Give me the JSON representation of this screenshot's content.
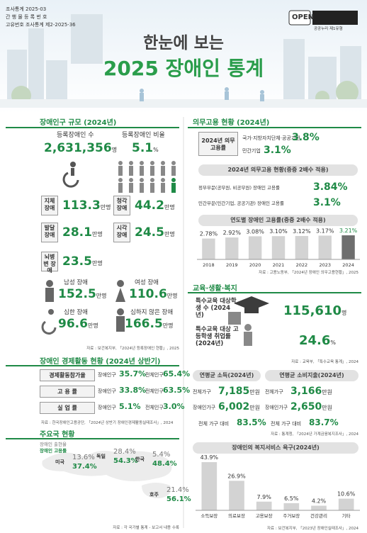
{
  "header": {
    "meta": [
      "조사통계 2025-03",
      "간 행 물 등 록 번 호",
      "고유번호 조사통계 제2-2025-36"
    ],
    "title": "한눈에 보는",
    "subtitle": "2025 장애인 통계",
    "license": "OPEN",
    "license_note": "공공누리 제1유형"
  },
  "population": {
    "heading": "장애인구 규모 (2024년)",
    "registered": {
      "label": "등록장애인 수",
      "value": "2,631,356",
      "unit": "명"
    },
    "ratio": {
      "label": "등록장애인 비율",
      "value": "5.1",
      "unit": "%"
    },
    "types": [
      {
        "label": "지체 장애",
        "value": "113.3",
        "unit": "만명"
      },
      {
        "label": "청각 장애",
        "value": "44.2",
        "unit": "만명"
      },
      {
        "label": "발달 장애",
        "value": "28.1",
        "unit": "만명"
      },
      {
        "label": "시각 장애",
        "value": "24.5",
        "unit": "만명"
      },
      {
        "label": "뇌병변 장애",
        "value": "23.5",
        "unit": "만명"
      }
    ],
    "groups": [
      {
        "label": "남성 장애",
        "value": "152.5",
        "unit": "만명"
      },
      {
        "label": "여성 장애",
        "value": "110.6",
        "unit": "만명"
      },
      {
        "label": "심한 장애",
        "value": "96.6",
        "unit": "만명"
      },
      {
        "label": "심하지 않은 장애",
        "value": "166.5",
        "unit": "만명"
      }
    ],
    "source": "자료 : 보건복지부, 「2024년 등록장애인 현황」, 2025"
  },
  "economy": {
    "heading": "장애인 경제활동 현황 (2024년 상반기)",
    "rows": [
      {
        "label": "경제활동참가율",
        "disabled_label": "장애인구",
        "disabled": "35.7%",
        "total_label": "전체인구",
        "total": "65.4%"
      },
      {
        "label": "고 용 률",
        "disabled_label": "장애인구",
        "disabled": "33.8%",
        "total_label": "전체인구",
        "total": "63.5%"
      },
      {
        "label": "실 업 률",
        "disabled_label": "장애인구",
        "disabled": "5.1%",
        "total_label": "전체인구",
        "total": "3.0%"
      }
    ],
    "source": "자료 : 한국장애인고용공단, 「2024년 상반기 장애인경제활동실태조사」, 2024"
  },
  "countries": {
    "heading": "주요국 현황",
    "legend": [
      "장애인 출현율",
      "장애인 고용률"
    ],
    "items": [
      {
        "name": "미국",
        "prevalence": "13.6%",
        "employment": "37.4%"
      },
      {
        "name": "독일",
        "prevalence": "28.4%",
        "employment": "54.3%"
      },
      {
        "name": "한국",
        "prevalence": "5.4%",
        "employment": "48.4%"
      },
      {
        "name": "호주",
        "prevalence": "21.4%",
        "employment": "56.1%"
      }
    ],
    "source": "자료 : 각 국가별 통계 - 보고서 내용 수록"
  },
  "quota": {
    "heading": "의무고용 현황 (2024년)",
    "rate_label": "2024년 의무고용률",
    "rates": [
      {
        "label": "국가·지방자치단체·공공기관",
        "value": "3.8%"
      },
      {
        "label": "민간기업",
        "value": "3.1%"
      }
    ],
    "status_heading": "2024년 의무고용 현황(중증 2배수 적용)",
    "status": [
      {
        "label": "정부부문(공무원, 비공무원) 장애인 고용률",
        "value": "3.84%"
      },
      {
        "label": "민간부문(민간기업, 공공기관) 장애인 고용률",
        "value": "3.1%"
      }
    ],
    "trend_heading": "연도별 장애인 고용률(중증 2배수 적용)",
    "source": "자료 : 고용노동부, 「2024년 장애인 의무고용현황」, 2025"
  },
  "education": {
    "heading": "교육·생활·복지",
    "items": [
      {
        "label": "특수교육 대상학생 수 (2024년)",
        "value": "115,610",
        "unit": "명"
      },
      {
        "label": "특수교육 대상 고등학생 취업률 (2024년)",
        "value": "24.6",
        "unit": "%"
      }
    ],
    "source": "자료 : 교육부, 「특수교육 통계」, 2024"
  },
  "income": {
    "income_heading": "연평균 소득(2024년)",
    "spending_heading": "연평균 소비지출(2024년)",
    "income_rows": [
      {
        "label": "전체가구",
        "value": "7,185",
        "unit": "만원"
      },
      {
        "label": "장애인가구",
        "value": "6,002",
        "unit": "만원"
      }
    ],
    "income_ratio": {
      "label": "전체 가구 대비",
      "value": "83.5%"
    },
    "spending_rows": [
      {
        "label": "전체가구",
        "value": "3,166",
        "unit": "만원"
      },
      {
        "label": "장애인가구",
        "value": "2,650",
        "unit": "만원"
      }
    ],
    "spending_ratio": {
      "label": "전체 가구 대비",
      "value": "83.7%"
    },
    "source": "자료 : 통계청, 「2024년 가계금융복지조사」, 2024"
  },
  "welfare": {
    "heading": "장애인의 복지서비스 욕구(2024년)",
    "source": "자료 : 보건복지부, 「2023년 장애인실태조사」, 2024"
  },
  "chart_data": [
    {
      "type": "bar",
      "categories": [
        "2018",
        "2019",
        "2020",
        "2021",
        "2022",
        "2023",
        "2024"
      ],
      "values": [
        2.78,
        2.92,
        3.08,
        3.1,
        3.12,
        3.17,
        3.21
      ],
      "value_labels": [
        "2.78%",
        "2.92%",
        "3.08%",
        "3.10%",
        "3.12%",
        "3.17%",
        "3.21%"
      ],
      "colors": [
        "#d3d3d3",
        "#d3d3d3",
        "#d3d3d3",
        "#d3d3d3",
        "#d3d3d3",
        "#d3d3d3",
        "#6e6e6e"
      ]
    },
    {
      "type": "bar",
      "categories": [
        "소득보장",
        "의료보장",
        "고용보장",
        "주거보장",
        "건강관리",
        "기타"
      ],
      "values": [
        43.9,
        26.9,
        7.9,
        6.5,
        4.2,
        10.6
      ],
      "value_labels": [
        "43.9%",
        "26.9%",
        "7.9%",
        "6.5%",
        "4.2%",
        "10.6%"
      ],
      "colors": [
        "#d3d3d3",
        "#d3d3d3",
        "#d3d3d3",
        "#d3d3d3",
        "#d3d3d3",
        "#d3d3d3"
      ]
    }
  ]
}
